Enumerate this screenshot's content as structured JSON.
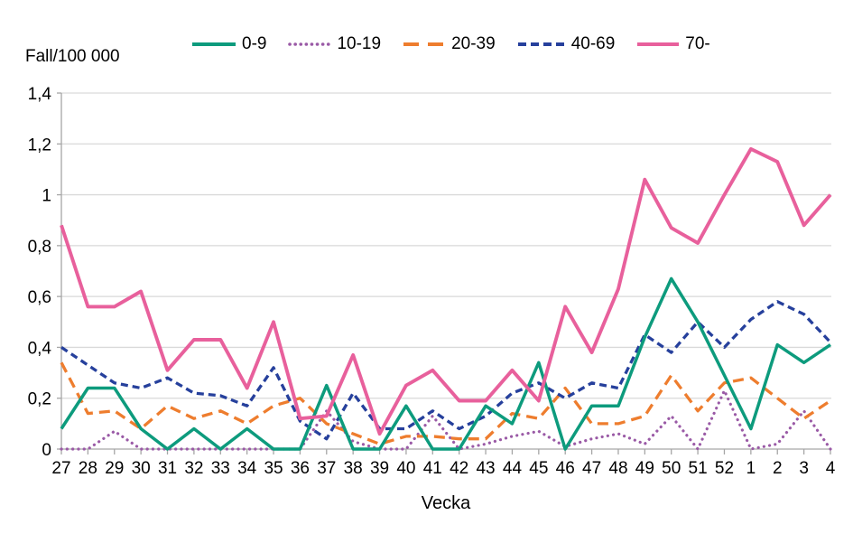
{
  "chart": {
    "y_axis_title": "Fall/100 000",
    "x_axis_title": "Vecka"
  },
  "chart_data": {
    "type": "line",
    "title": "",
    "xlabel": "Vecka",
    "ylabel": "Fall/100 000",
    "ylim": [
      0,
      1.4
    ],
    "grid": true,
    "legend_position": "top",
    "categories": [
      "27",
      "28",
      "29",
      "30",
      "31",
      "32",
      "33",
      "34",
      "35",
      "36",
      "37",
      "38",
      "39",
      "40",
      "41",
      "42",
      "43",
      "44",
      "45",
      "46",
      "47",
      "48",
      "49",
      "50",
      "51",
      "52",
      "1",
      "2",
      "3",
      "4"
    ],
    "y_ticks": [
      {
        "value": 0,
        "label": "0"
      },
      {
        "value": 0.2,
        "label": "0,2"
      },
      {
        "value": 0.4,
        "label": "0,4"
      },
      {
        "value": 0.6,
        "label": "0,6"
      },
      {
        "value": 0.8,
        "label": "0,8"
      },
      {
        "value": 1,
        "label": "1"
      },
      {
        "value": 1.2,
        "label": "1,2"
      },
      {
        "value": 1.4,
        "label": "1,4"
      }
    ],
    "series": [
      {
        "name": "0-9",
        "color": "#0d9b7d",
        "line_style": "solid",
        "values": [
          0.08,
          0.24,
          0.24,
          0.08,
          0,
          0.08,
          0,
          0.08,
          0,
          0,
          0.25,
          0,
          0,
          0.17,
          0,
          0,
          0.17,
          0.1,
          0.34,
          0,
          0.17,
          0.17,
          0.44,
          0.67,
          0.5,
          0.29,
          0.08,
          0.41,
          0.34,
          0.41
        ]
      },
      {
        "name": "10-19",
        "color": "#9a5aa6",
        "line_style": "dotted",
        "values": [
          0,
          0,
          0.07,
          0,
          0,
          0,
          0,
          0,
          0,
          0,
          0.15,
          0.03,
          0,
          0,
          0.13,
          0,
          0.02,
          0.05,
          0.07,
          0.01,
          0.04,
          0.06,
          0.02,
          0.13,
          0,
          0.23,
          0,
          0.02,
          0.15,
          0
        ]
      },
      {
        "name": "20-39",
        "color": "#ee7d2e",
        "line_style": "dashed-long",
        "values": [
          0.34,
          0.14,
          0.15,
          0.08,
          0.17,
          0.12,
          0.15,
          0.1,
          0.17,
          0.2,
          0.1,
          0.06,
          0.02,
          0.05,
          0.05,
          0.04,
          0.04,
          0.14,
          0.12,
          0.24,
          0.1,
          0.1,
          0.13,
          0.29,
          0.15,
          0.26,
          0.28,
          0.2,
          0.12,
          0.19
        ]
      },
      {
        "name": "40-69",
        "color": "#26409c",
        "line_style": "dashed",
        "values": [
          0.4,
          0.33,
          0.26,
          0.24,
          0.28,
          0.22,
          0.21,
          0.17,
          0.32,
          0.11,
          0.04,
          0.22,
          0.08,
          0.08,
          0.15,
          0.08,
          0.13,
          0.22,
          0.26,
          0.2,
          0.26,
          0.24,
          0.45,
          0.38,
          0.5,
          0.4,
          0.51,
          0.58,
          0.53,
          0.42
        ]
      },
      {
        "name": "70-",
        "color": "#e8609c",
        "line_style": "solid",
        "values": [
          0.88,
          0.56,
          0.56,
          0.62,
          0.31,
          0.43,
          0.43,
          0.24,
          0.5,
          0.12,
          0.13,
          0.37,
          0.06,
          0.25,
          0.31,
          0.19,
          0.19,
          0.31,
          0.19,
          0.56,
          0.38,
          0.63,
          1.06,
          0.87,
          0.81,
          1.0,
          1.18,
          1.13,
          0.88,
          1.0
        ]
      }
    ],
    "colors": {
      "gridline": "#d9d9d9",
      "axis": "#a6a6a6",
      "text": "#000000"
    }
  }
}
